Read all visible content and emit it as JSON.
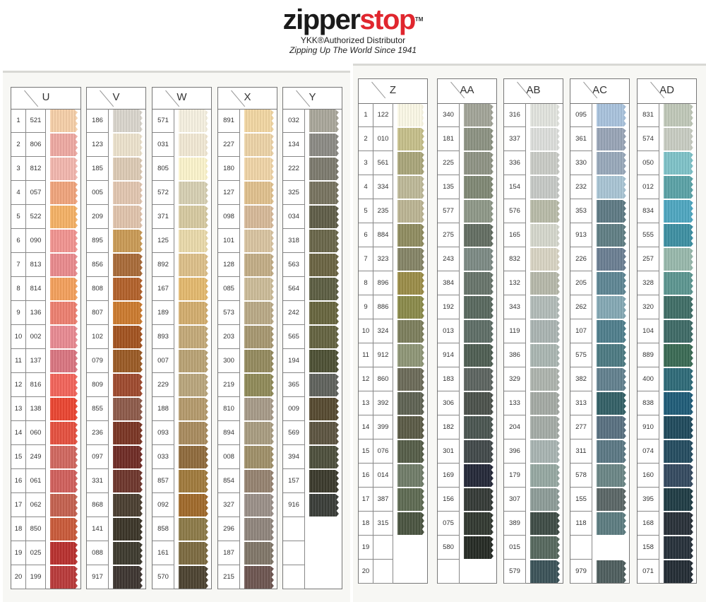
{
  "header": {
    "logo_text_dark": "zipper",
    "logo_text_red": "stop",
    "trademark": "TM",
    "tagline": "YKK®Authorized Distributor",
    "slogan": "Zipping Up The World Since 1941",
    "brand_red": "#e0262e"
  },
  "row_numbers": [
    "1",
    "2",
    "3",
    "4",
    "5",
    "6",
    "7",
    "8",
    "9",
    "10",
    "11",
    "12",
    "13",
    "14",
    "15",
    "16",
    "17",
    "18",
    "19",
    "20"
  ],
  "panels": [
    {
      "columns": [
        {
          "letter": "U",
          "rows": [
            {
              "code": "521",
              "color": "#f5cfa8"
            },
            {
              "code": "806",
              "color": "#eea9a2"
            },
            {
              "code": "812",
              "color": "#f2b6ae"
            },
            {
              "code": "057",
              "color": "#f0a47c"
            },
            {
              "code": "522",
              "color": "#f4b165"
            },
            {
              "code": "090",
              "color": "#f19490"
            },
            {
              "code": "813",
              "color": "#e98a8d"
            },
            {
              "code": "814",
              "color": "#f3a05c"
            },
            {
              "code": "136",
              "color": "#ed7f70"
            },
            {
              "code": "002",
              "color": "#e88a92"
            },
            {
              "code": "137",
              "color": "#d97580"
            },
            {
              "code": "816",
              "color": "#f2645a"
            },
            {
              "code": "138",
              "color": "#ea4531"
            },
            {
              "code": "060",
              "color": "#e5503f"
            },
            {
              "code": "249",
              "color": "#d0675f"
            },
            {
              "code": "061",
              "color": "#d0605c"
            },
            {
              "code": "062",
              "color": "#c4614f"
            },
            {
              "code": "850",
              "color": "#c95a3a"
            },
            {
              "code": "025",
              "color": "#b8302e"
            },
            {
              "code": "199",
              "color": "#b93a3a"
            }
          ]
        },
        {
          "letter": "V",
          "rows": [
            {
              "code": "186",
              "color": "#d9d5cc"
            },
            {
              "code": "123",
              "color": "#ece2cc"
            },
            {
              "code": "185",
              "color": "#dccab4"
            },
            {
              "code": "005",
              "color": "#e2c6b0"
            },
            {
              "code": "209",
              "color": "#e0c3ac"
            },
            {
              "code": "895",
              "color": "#c99a55"
            },
            {
              "code": "856",
              "color": "#a86a38"
            },
            {
              "code": "808",
              "color": "#b2612a"
            },
            {
              "code": "807",
              "color": "#cb7a2e"
            },
            {
              "code": "102",
              "color": "#a2521f"
            },
            {
              "code": "079",
              "color": "#9a5a25"
            },
            {
              "code": "809",
              "color": "#9e4a2e"
            },
            {
              "code": "855",
              "color": "#8d5a4a"
            },
            {
              "code": "236",
              "color": "#7a3524"
            },
            {
              "code": "097",
              "color": "#6f2b25"
            },
            {
              "code": "331",
              "color": "#6e362c"
            },
            {
              "code": "868",
              "color": "#4a3e30"
            },
            {
              "code": "141",
              "color": "#3b3528"
            },
            {
              "code": "088",
              "color": "#3d3a2e"
            },
            {
              "code": "917",
              "color": "#3d3530"
            }
          ]
        },
        {
          "letter": "W",
          "rows": [
            {
              "code": "571",
              "color": "#f5f0e0"
            },
            {
              "code": "031",
              "color": "#f1e8d4"
            },
            {
              "code": "805",
              "color": "#fbf3cb"
            },
            {
              "code": "572",
              "color": "#d6cfb2"
            },
            {
              "code": "371",
              "color": "#d6c9a0"
            },
            {
              "code": "125",
              "color": "#e9d9aa"
            },
            {
              "code": "892",
              "color": "#dcbf89"
            },
            {
              "code": "167",
              "color": "#e3b86e"
            },
            {
              "code": "189",
              "color": "#d2ad6e"
            },
            {
              "code": "893",
              "color": "#c3a978"
            },
            {
              "code": "007",
              "color": "#b9a274"
            },
            {
              "code": "229",
              "color": "#b9a57c"
            },
            {
              "code": "188",
              "color": "#b49a6c"
            },
            {
              "code": "093",
              "color": "#a88b5e"
            },
            {
              "code": "033",
              "color": "#8f6a3c"
            },
            {
              "code": "857",
              "color": "#a07a3c"
            },
            {
              "code": "092",
              "color": "#a0692a"
            },
            {
              "code": "858",
              "color": "#8c7a48"
            },
            {
              "code": "161",
              "color": "#7c6a40"
            },
            {
              "code": "570",
              "color": "#4c4230"
            }
          ]
        },
        {
          "letter": "X",
          "rows": [
            {
              "code": "891",
              "color": "#f1d6a2"
            },
            {
              "code": "227",
              "color": "#ecd2a6"
            },
            {
              "code": "180",
              "color": "#efd4a6"
            },
            {
              "code": "127",
              "color": "#dfc08d"
            },
            {
              "code": "098",
              "color": "#d6b898"
            },
            {
              "code": "101",
              "color": "#d8c3a0"
            },
            {
              "code": "128",
              "color": "#c2ad86"
            },
            {
              "code": "085",
              "color": "#cbbb98"
            },
            {
              "code": "573",
              "color": "#b9a986"
            },
            {
              "code": "203",
              "color": "#a69770"
            },
            {
              "code": "300",
              "color": "#948a5e"
            },
            {
              "code": "219",
              "color": "#8f8a58"
            },
            {
              "code": "810",
              "color": "#a69a88"
            },
            {
              "code": "894",
              "color": "#a89c80"
            },
            {
              "code": "008",
              "color": "#9f8f68"
            },
            {
              "code": "854",
              "color": "#958270"
            },
            {
              "code": "327",
              "color": "#9a8f88"
            },
            {
              "code": "296",
              "color": "#8f857c"
            },
            {
              "code": "187",
              "color": "#807668"
            },
            {
              "code": "215",
              "color": "#6d5550"
            }
          ]
        },
        {
          "letter": "Y",
          "rows": [
            {
              "code": "032",
              "color": "#a9a69a"
            },
            {
              "code": "134",
              "color": "#8b8a84"
            },
            {
              "code": "222",
              "color": "#7c7a6e"
            },
            {
              "code": "325",
              "color": "#77735f"
            },
            {
              "code": "034",
              "color": "#5f5d48"
            },
            {
              "code": "318",
              "color": "#69664a"
            },
            {
              "code": "563",
              "color": "#6a6442"
            },
            {
              "code": "564",
              "color": "#5c5e42"
            },
            {
              "code": "242",
              "color": "#67653e"
            },
            {
              "code": "565",
              "color": "#646340"
            },
            {
              "code": "194",
              "color": "#4d5034"
            },
            {
              "code": "365",
              "color": "#5f625c"
            },
            {
              "code": "009",
              "color": "#564a30"
            },
            {
              "code": "569",
              "color": "#5c5440"
            },
            {
              "code": "394",
              "color": "#4d4f3c"
            },
            {
              "code": "157",
              "color": "#3b3a2c"
            },
            {
              "code": "916",
              "color": "#3a3d38"
            },
            {
              "code": "",
              "color": ""
            },
            {
              "code": "",
              "color": ""
            },
            {
              "code": "",
              "color": ""
            }
          ]
        }
      ]
    },
    {
      "columns": [
        {
          "letter": "Z",
          "rows": [
            {
              "code": "122",
              "color": "#fbf8e6"
            },
            {
              "code": "010",
              "color": "#c5bf8a"
            },
            {
              "code": "561",
              "color": "#a9a57a"
            },
            {
              "code": "334",
              "color": "#bdb898"
            },
            {
              "code": "235",
              "color": "#bbb493"
            },
            {
              "code": "884",
              "color": "#8f8c60"
            },
            {
              "code": "323",
              "color": "#858466"
            },
            {
              "code": "896",
              "color": "#9a8c48"
            },
            {
              "code": "886",
              "color": "#8a8a4a"
            },
            {
              "code": "324",
              "color": "#7c7e5c"
            },
            {
              "code": "912",
              "color": "#8e9676"
            },
            {
              "code": "860",
              "color": "#6b6a58"
            },
            {
              "code": "392",
              "color": "#5e6252"
            },
            {
              "code": "399",
              "color": "#5a5a46"
            },
            {
              "code": "076",
              "color": "#555d48"
            },
            {
              "code": "014",
              "color": "#707c68"
            },
            {
              "code": "387",
              "color": "#5e6a52"
            },
            {
              "code": "315",
              "color": "#4a5440"
            },
            {
              "code": "",
              "color": ""
            },
            {
              "code": "",
              "color": ""
            }
          ]
        },
        {
          "letter": "AA",
          "rows": [
            {
              "code": "340",
              "color": "#a2a498"
            },
            {
              "code": "181",
              "color": "#8c9282"
            },
            {
              "code": "225",
              "color": "#8e9384"
            },
            {
              "code": "135",
              "color": "#7f8874"
            },
            {
              "code": "577",
              "color": "#8e9888"
            },
            {
              "code": "275",
              "color": "#636e62"
            },
            {
              "code": "243",
              "color": "#7c8a84"
            },
            {
              "code": "384",
              "color": "#67746a"
            },
            {
              "code": "192",
              "color": "#58685e"
            },
            {
              "code": "013",
              "color": "#5e6e66"
            },
            {
              "code": "914",
              "color": "#4e5e52"
            },
            {
              "code": "183",
              "color": "#5c6460"
            },
            {
              "code": "306",
              "color": "#4b514b"
            },
            {
              "code": "182",
              "color": "#4a5550"
            },
            {
              "code": "301",
              "color": "#41494a"
            },
            {
              "code": "169",
              "color": "#242838"
            },
            {
              "code": "156",
              "color": "#343a36"
            },
            {
              "code": "075",
              "color": "#313830"
            },
            {
              "code": "580",
              "color": "#252a24"
            },
            {
              "code": "",
              "color": ""
            }
          ]
        },
        {
          "letter": "AB",
          "rows": [
            {
              "code": "316",
              "color": "#e2e4de"
            },
            {
              "code": "337",
              "color": "#dcdedb"
            },
            {
              "code": "336",
              "color": "#c9cbc6"
            },
            {
              "code": "154",
              "color": "#c6c9c6"
            },
            {
              "code": "576",
              "color": "#b8bba8"
            },
            {
              "code": "165",
              "color": "#d5d7cc"
            },
            {
              "code": "832",
              "color": "#d8d4c3"
            },
            {
              "code": "132",
              "color": "#b6b8aa"
            },
            {
              "code": "343",
              "color": "#b2bcb8"
            },
            {
              "code": "119",
              "color": "#aab4b2"
            },
            {
              "code": "386",
              "color": "#aab6b2"
            },
            {
              "code": "329",
              "color": "#aeb4ae"
            },
            {
              "code": "133",
              "color": "#a4aaa4"
            },
            {
              "code": "204",
              "color": "#a4aca6"
            },
            {
              "code": "396",
              "color": "#a8b4b2"
            },
            {
              "code": "179",
              "color": "#96a8a2"
            },
            {
              "code": "307",
              "color": "#8d9c98"
            },
            {
              "code": "389",
              "color": "#3e4c46"
            },
            {
              "code": "015",
              "color": "#56685e"
            },
            {
              "code": "579",
              "color": "#3b5258"
            }
          ]
        },
        {
          "letter": "AC",
          "rows": [
            {
              "code": "095",
              "color": "#a8c2dc"
            },
            {
              "code": "361",
              "color": "#98a4b6"
            },
            {
              "code": "330",
              "color": "#98a8ba"
            },
            {
              "code": "232",
              "color": "#a8c4d4"
            },
            {
              "code": "353",
              "color": "#5e7a84"
            },
            {
              "code": "913",
              "color": "#607e84"
            },
            {
              "code": "226",
              "color": "#6a7e92"
            },
            {
              "code": "205",
              "color": "#5e8694"
            },
            {
              "code": "262",
              "color": "#84a8b4"
            },
            {
              "code": "107",
              "color": "#4f7e8c"
            },
            {
              "code": "575",
              "color": "#4c7a82"
            },
            {
              "code": "382",
              "color": "#62808e"
            },
            {
              "code": "313",
              "color": "#336066"
            },
            {
              "code": "277",
              "color": "#587080"
            },
            {
              "code": "311",
              "color": "#5b7884"
            },
            {
              "code": "578",
              "color": "#6a8686"
            },
            {
              "code": "155",
              "color": "#5a6666"
            },
            {
              "code": "118",
              "color": "#5c7c80"
            },
            {
              "code": "",
              "color": ""
            },
            {
              "code": "979",
              "color": "#4e5e5e"
            }
          ]
        },
        {
          "letter": "AD",
          "rows": [
            {
              "code": "831",
              "color": "#c0c8b8"
            },
            {
              "code": "574",
              "color": "#c8ccc2"
            },
            {
              "code": "050",
              "color": "#7ec2c8"
            },
            {
              "code": "012",
              "color": "#5aa2a6"
            },
            {
              "code": "834",
              "color": "#4ea6c0"
            },
            {
              "code": "555",
              "color": "#3d8fa2"
            },
            {
              "code": "257",
              "color": "#98b8ac"
            },
            {
              "code": "328",
              "color": "#5c9690"
            },
            {
              "code": "320",
              "color": "#3f6e66"
            },
            {
              "code": "104",
              "color": "#3e6a66"
            },
            {
              "code": "889",
              "color": "#3a6a54"
            },
            {
              "code": "400",
              "color": "#2e6a78"
            },
            {
              "code": "838",
              "color": "#1f5c78"
            },
            {
              "code": "910",
              "color": "#1f4a5c"
            },
            {
              "code": "074",
              "color": "#244c60"
            },
            {
              "code": "160",
              "color": "#344a60"
            },
            {
              "code": "395",
              "color": "#1f3c44"
            },
            {
              "code": "168",
              "color": "#283038"
            },
            {
              "code": "158",
              "color": "#26303a"
            },
            {
              "code": "071",
              "color": "#232c34"
            }
          ]
        }
      ]
    }
  ]
}
